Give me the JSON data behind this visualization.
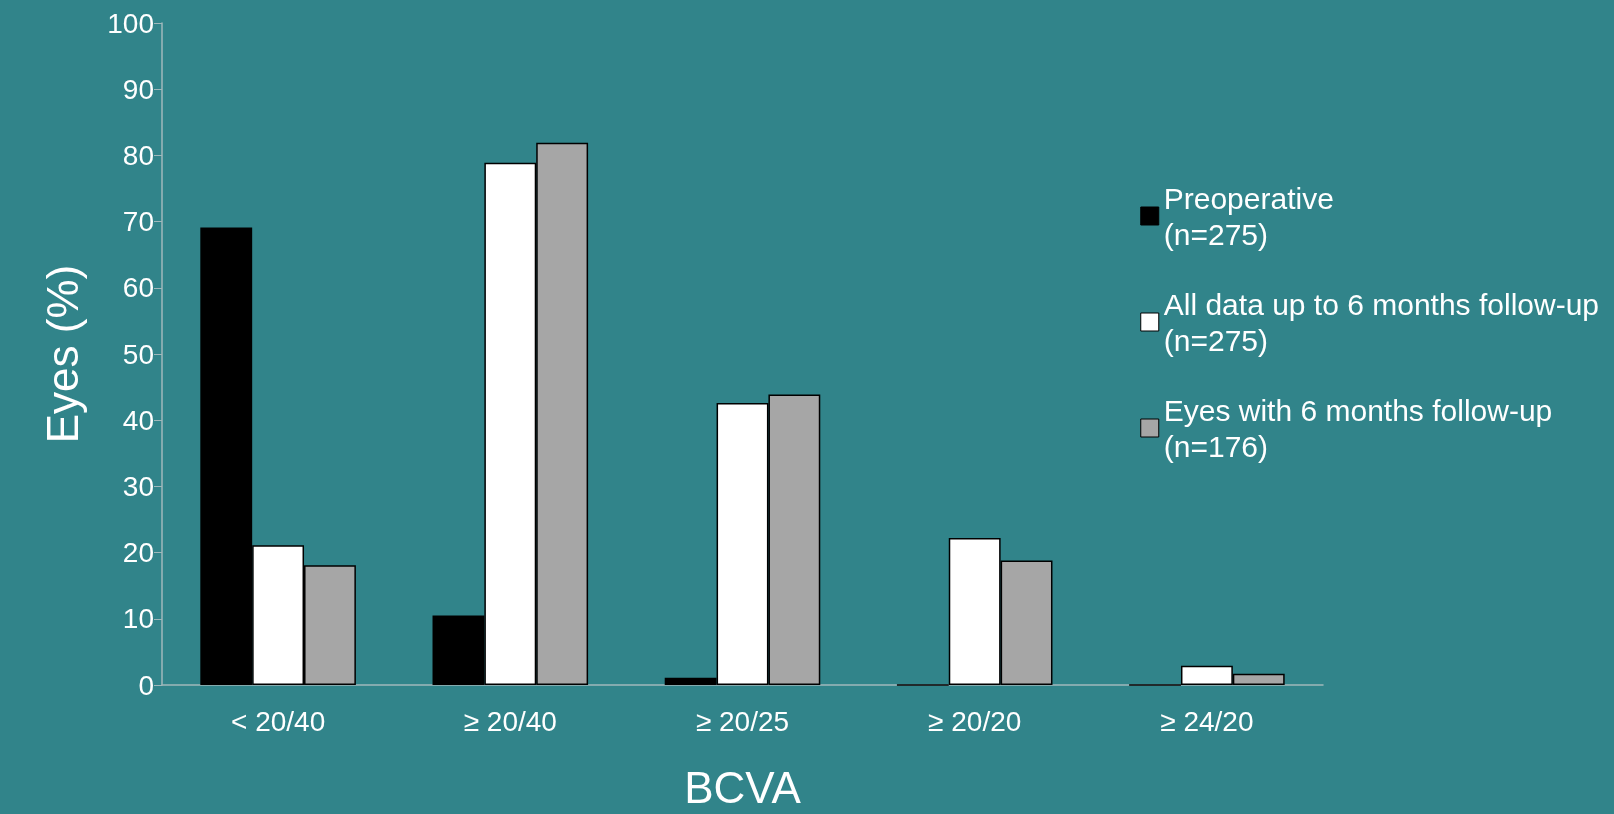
{
  "chart_data": {
    "type": "bar",
    "xlabel": "BCVA",
    "ylabel": "Eyes (%)",
    "categories": [
      "< 20/40",
      "≥ 20/40",
      "≥ 20/25",
      "≥ 20/20",
      "≥ 24/20"
    ],
    "series": [
      {
        "name": "Preoperative\n(n=275)",
        "color": "#000000",
        "values": [
          69.1,
          10.5,
          1.1,
          0,
          0
        ]
      },
      {
        "name": "All data up to 6 months follow-up\n(n=275)",
        "color": "#ffffff",
        "values": [
          21.1,
          78.9,
          42.6,
          22.2,
          2.9
        ]
      },
      {
        "name": "Eyes with 6 months follow-up\n(n=176)",
        "color": "#a6a6a6",
        "values": [
          18.1,
          81.9,
          43.9,
          18.8,
          1.7
        ]
      }
    ],
    "ylim": [
      0,
      100
    ],
    "yticks": [
      0,
      10,
      20,
      30,
      40,
      50,
      60,
      70,
      80,
      90,
      100
    ],
    "grid": false,
    "legend": "right"
  }
}
